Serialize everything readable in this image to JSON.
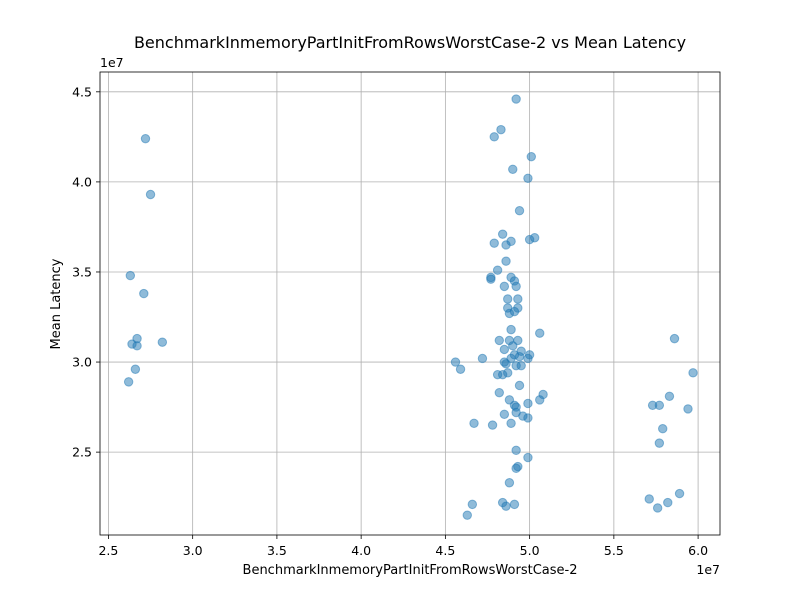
{
  "chart_data": {
    "type": "scatter",
    "title": "BenchmarkInmemoryPartInitFromRowsWorstCase-2 vs Mean Latency",
    "xlabel": "BenchmarkInmemoryPartInitFromRowsWorstCase-2",
    "ylabel": "Mean Latency",
    "x_offset_label": "1e7",
    "y_offset_label": "1e7",
    "xlim": [
      2.45,
      6.13
    ],
    "ylim": [
      2.04,
      4.61
    ],
    "x_ticks": [
      2.5,
      3.0,
      3.5,
      4.0,
      4.5,
      5.0,
      5.5,
      6.0
    ],
    "y_ticks": [
      2.5,
      3.0,
      3.5,
      4.0,
      4.5
    ],
    "x_tick_labels": [
      "2.5",
      "3.0",
      "3.5",
      "4.0",
      "4.5",
      "5.0",
      "5.5",
      "6.0"
    ],
    "y_tick_labels": [
      "2.5",
      "3.0",
      "3.5",
      "4.0",
      "4.5"
    ],
    "grid": true,
    "color": "#1f77b4",
    "points": [
      [
        2.72,
        4.24
      ],
      [
        2.75,
        3.93
      ],
      [
        2.63,
        3.48
      ],
      [
        2.71,
        3.38
      ],
      [
        2.67,
        3.13
      ],
      [
        2.64,
        3.1
      ],
      [
        2.67,
        3.09
      ],
      [
        2.82,
        3.11
      ],
      [
        2.66,
        2.96
      ],
      [
        2.62,
        2.89
      ],
      [
        4.92,
        4.46
      ],
      [
        4.83,
        4.29
      ],
      [
        4.79,
        4.25
      ],
      [
        5.01,
        4.14
      ],
      [
        4.9,
        4.07
      ],
      [
        4.99,
        4.02
      ],
      [
        4.94,
        3.84
      ],
      [
        4.84,
        3.71
      ],
      [
        4.89,
        3.67
      ],
      [
        4.79,
        3.66
      ],
      [
        4.86,
        3.65
      ],
      [
        5.0,
        3.68
      ],
      [
        5.03,
        3.69
      ],
      [
        4.86,
        3.56
      ],
      [
        4.81,
        3.51
      ],
      [
        4.77,
        3.47
      ],
      [
        4.77,
        3.46
      ],
      [
        4.89,
        3.47
      ],
      [
        4.91,
        3.45
      ],
      [
        4.85,
        3.42
      ],
      [
        4.92,
        3.42
      ],
      [
        4.87,
        3.35
      ],
      [
        4.93,
        3.35
      ],
      [
        4.87,
        3.3
      ],
      [
        4.93,
        3.3
      ],
      [
        4.88,
        3.27
      ],
      [
        4.91,
        3.28
      ],
      [
        4.89,
        3.18
      ],
      [
        5.06,
        3.16
      ],
      [
        4.82,
        3.12
      ],
      [
        4.88,
        3.12
      ],
      [
        4.93,
        3.12
      ],
      [
        4.85,
        3.07
      ],
      [
        4.9,
        3.09
      ],
      [
        4.95,
        3.06
      ],
      [
        4.91,
        3.04
      ],
      [
        4.94,
        3.03
      ],
      [
        4.99,
        3.02
      ],
      [
        5.0,
        3.04
      ],
      [
        4.89,
        3.02
      ],
      [
        4.56,
        3.0
      ],
      [
        4.72,
        3.02
      ],
      [
        4.85,
        3.0
      ],
      [
        4.86,
        2.99
      ],
      [
        4.92,
        2.98
      ],
      [
        4.95,
        2.98
      ],
      [
        4.59,
        2.96
      ],
      [
        4.81,
        2.93
      ],
      [
        4.84,
        2.93
      ],
      [
        4.87,
        2.94
      ],
      [
        4.94,
        2.87
      ],
      [
        4.82,
        2.83
      ],
      [
        5.08,
        2.82
      ],
      [
        4.88,
        2.79
      ],
      [
        5.06,
        2.79
      ],
      [
        4.91,
        2.76
      ],
      [
        4.92,
        2.75
      ],
      [
        4.99,
        2.77
      ],
      [
        4.85,
        2.71
      ],
      [
        4.92,
        2.72
      ],
      [
        4.96,
        2.7
      ],
      [
        4.99,
        2.69
      ],
      [
        4.67,
        2.66
      ],
      [
        4.78,
        2.65
      ],
      [
        4.89,
        2.66
      ],
      [
        4.92,
        2.51
      ],
      [
        4.99,
        2.47
      ],
      [
        4.93,
        2.42
      ],
      [
        4.92,
        2.41
      ],
      [
        4.88,
        2.33
      ],
      [
        4.84,
        2.22
      ],
      [
        4.86,
        2.2
      ],
      [
        4.91,
        2.21
      ],
      [
        4.66,
        2.21
      ],
      [
        4.63,
        2.15
      ],
      [
        5.86,
        3.13
      ],
      [
        5.97,
        2.94
      ],
      [
        5.83,
        2.81
      ],
      [
        5.73,
        2.76
      ],
      [
        5.77,
        2.76
      ],
      [
        5.94,
        2.74
      ],
      [
        5.79,
        2.63
      ],
      [
        5.77,
        2.55
      ],
      [
        5.89,
        2.27
      ],
      [
        5.71,
        2.24
      ],
      [
        5.82,
        2.22
      ],
      [
        5.76,
        2.19
      ]
    ]
  }
}
